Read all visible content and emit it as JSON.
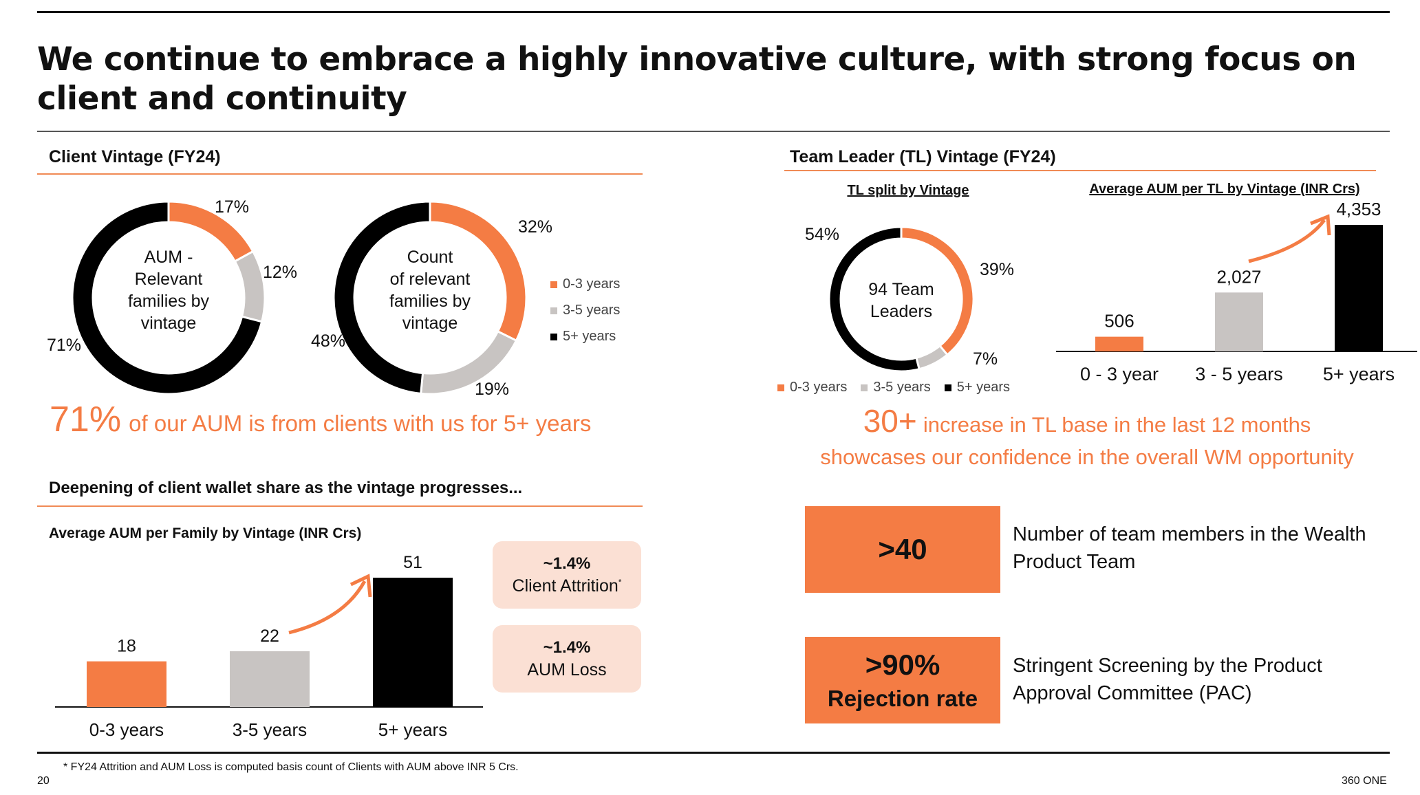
{
  "title": "We continue to embrace a highly innovative culture, with strong focus on client and continuity",
  "left": {
    "section_title": "Client Vintage (FY24)",
    "donut1": {
      "center_lines": [
        "AUM -",
        "Relevant",
        "families by",
        "vintage"
      ],
      "labels": [
        "17%",
        "12%",
        "71%"
      ]
    },
    "donut2": {
      "center_lines": [
        "Count",
        "of relevant",
        "families by",
        "vintage"
      ],
      "labels": [
        "32%",
        "19%",
        "48%"
      ]
    },
    "legend": [
      "0-3 years",
      "3-5 years",
      "5+ years"
    ],
    "highlight_value": "71%",
    "highlight_text": "of our AUM is from clients with us for 5+ years",
    "section2_title": "Deepening of client wallet share as the vintage progresses...",
    "bar_title": "Average AUM per Family by Vintage (INR Crs)",
    "attrition_value": "~1.4%",
    "attrition_label": "Client Attrition",
    "attrition_mark": "*",
    "aumloss_value": "~1.4%",
    "aumloss_label": "AUM Loss"
  },
  "right": {
    "section_title": "Team Leader (TL) Vintage (FY24)",
    "split_title": "TL split by Vintage",
    "avg_title": "Average AUM per TL by Vintage (INR Crs)",
    "donut": {
      "center_lines": [
        "94 Team",
        "Leaders"
      ],
      "labels": [
        "39%",
        "7%",
        "54%"
      ]
    },
    "legend": [
      "0-3 years",
      "3-5 years",
      "5+ years"
    ],
    "highlight_value": "30+",
    "highlight_text1": "increase in TL base in the last 12 months",
    "highlight_text2": "showcases our confidence in the overall WM opportunity",
    "box1_value": ">40",
    "box1_desc": "Number of team members in the Wealth Product Team",
    "box2_value": ">90%",
    "box2_label": "Rejection rate",
    "box2_desc": "Stringent Screening by the Product Approval Committee (PAC)"
  },
  "footnote": "* FY24 Attrition and AUM Loss is computed basis count of Clients with AUM above INR 5 Crs.",
  "page_number": "20",
  "brand": "360 ONE",
  "colors": {
    "orange": "#f47c44",
    "grey": "#c8c4c2",
    "black": "#000000",
    "pink": "#fbe0d4"
  },
  "chart_data": [
    {
      "type": "pie",
      "donut": true,
      "categories": [
        "0-3 years",
        "3-5 years",
        "5+ years"
      ],
      "values": [
        17,
        12,
        71
      ]
    },
    {
      "type": "pie",
      "donut": true,
      "categories": [
        "0-3 years",
        "3-5 years",
        "5+ years"
      ],
      "values": [
        32,
        19,
        48
      ]
    },
    {
      "type": "bar",
      "title": "Average AUM per Family by Vintage (INR Crs)",
      "categories": [
        "0-3 years",
        "3-5 years",
        "5+ years"
      ],
      "values": [
        18,
        22,
        51
      ],
      "value_labels": [
        "18",
        "22",
        "51"
      ]
    },
    {
      "type": "pie",
      "donut": true,
      "title": "TL split by Vintage",
      "categories": [
        "0-3 years",
        "3-5 years",
        "5+ years"
      ],
      "values": [
        39,
        7,
        54
      ]
    },
    {
      "type": "bar",
      "title": "Average AUM per TL by Vintage (INR Crs)",
      "categories": [
        "0 - 3 year",
        "3 - 5 years",
        "5+ years"
      ],
      "values": [
        506,
        2027,
        4353
      ],
      "value_labels": [
        "506",
        "2,027",
        "4,353"
      ]
    }
  ]
}
